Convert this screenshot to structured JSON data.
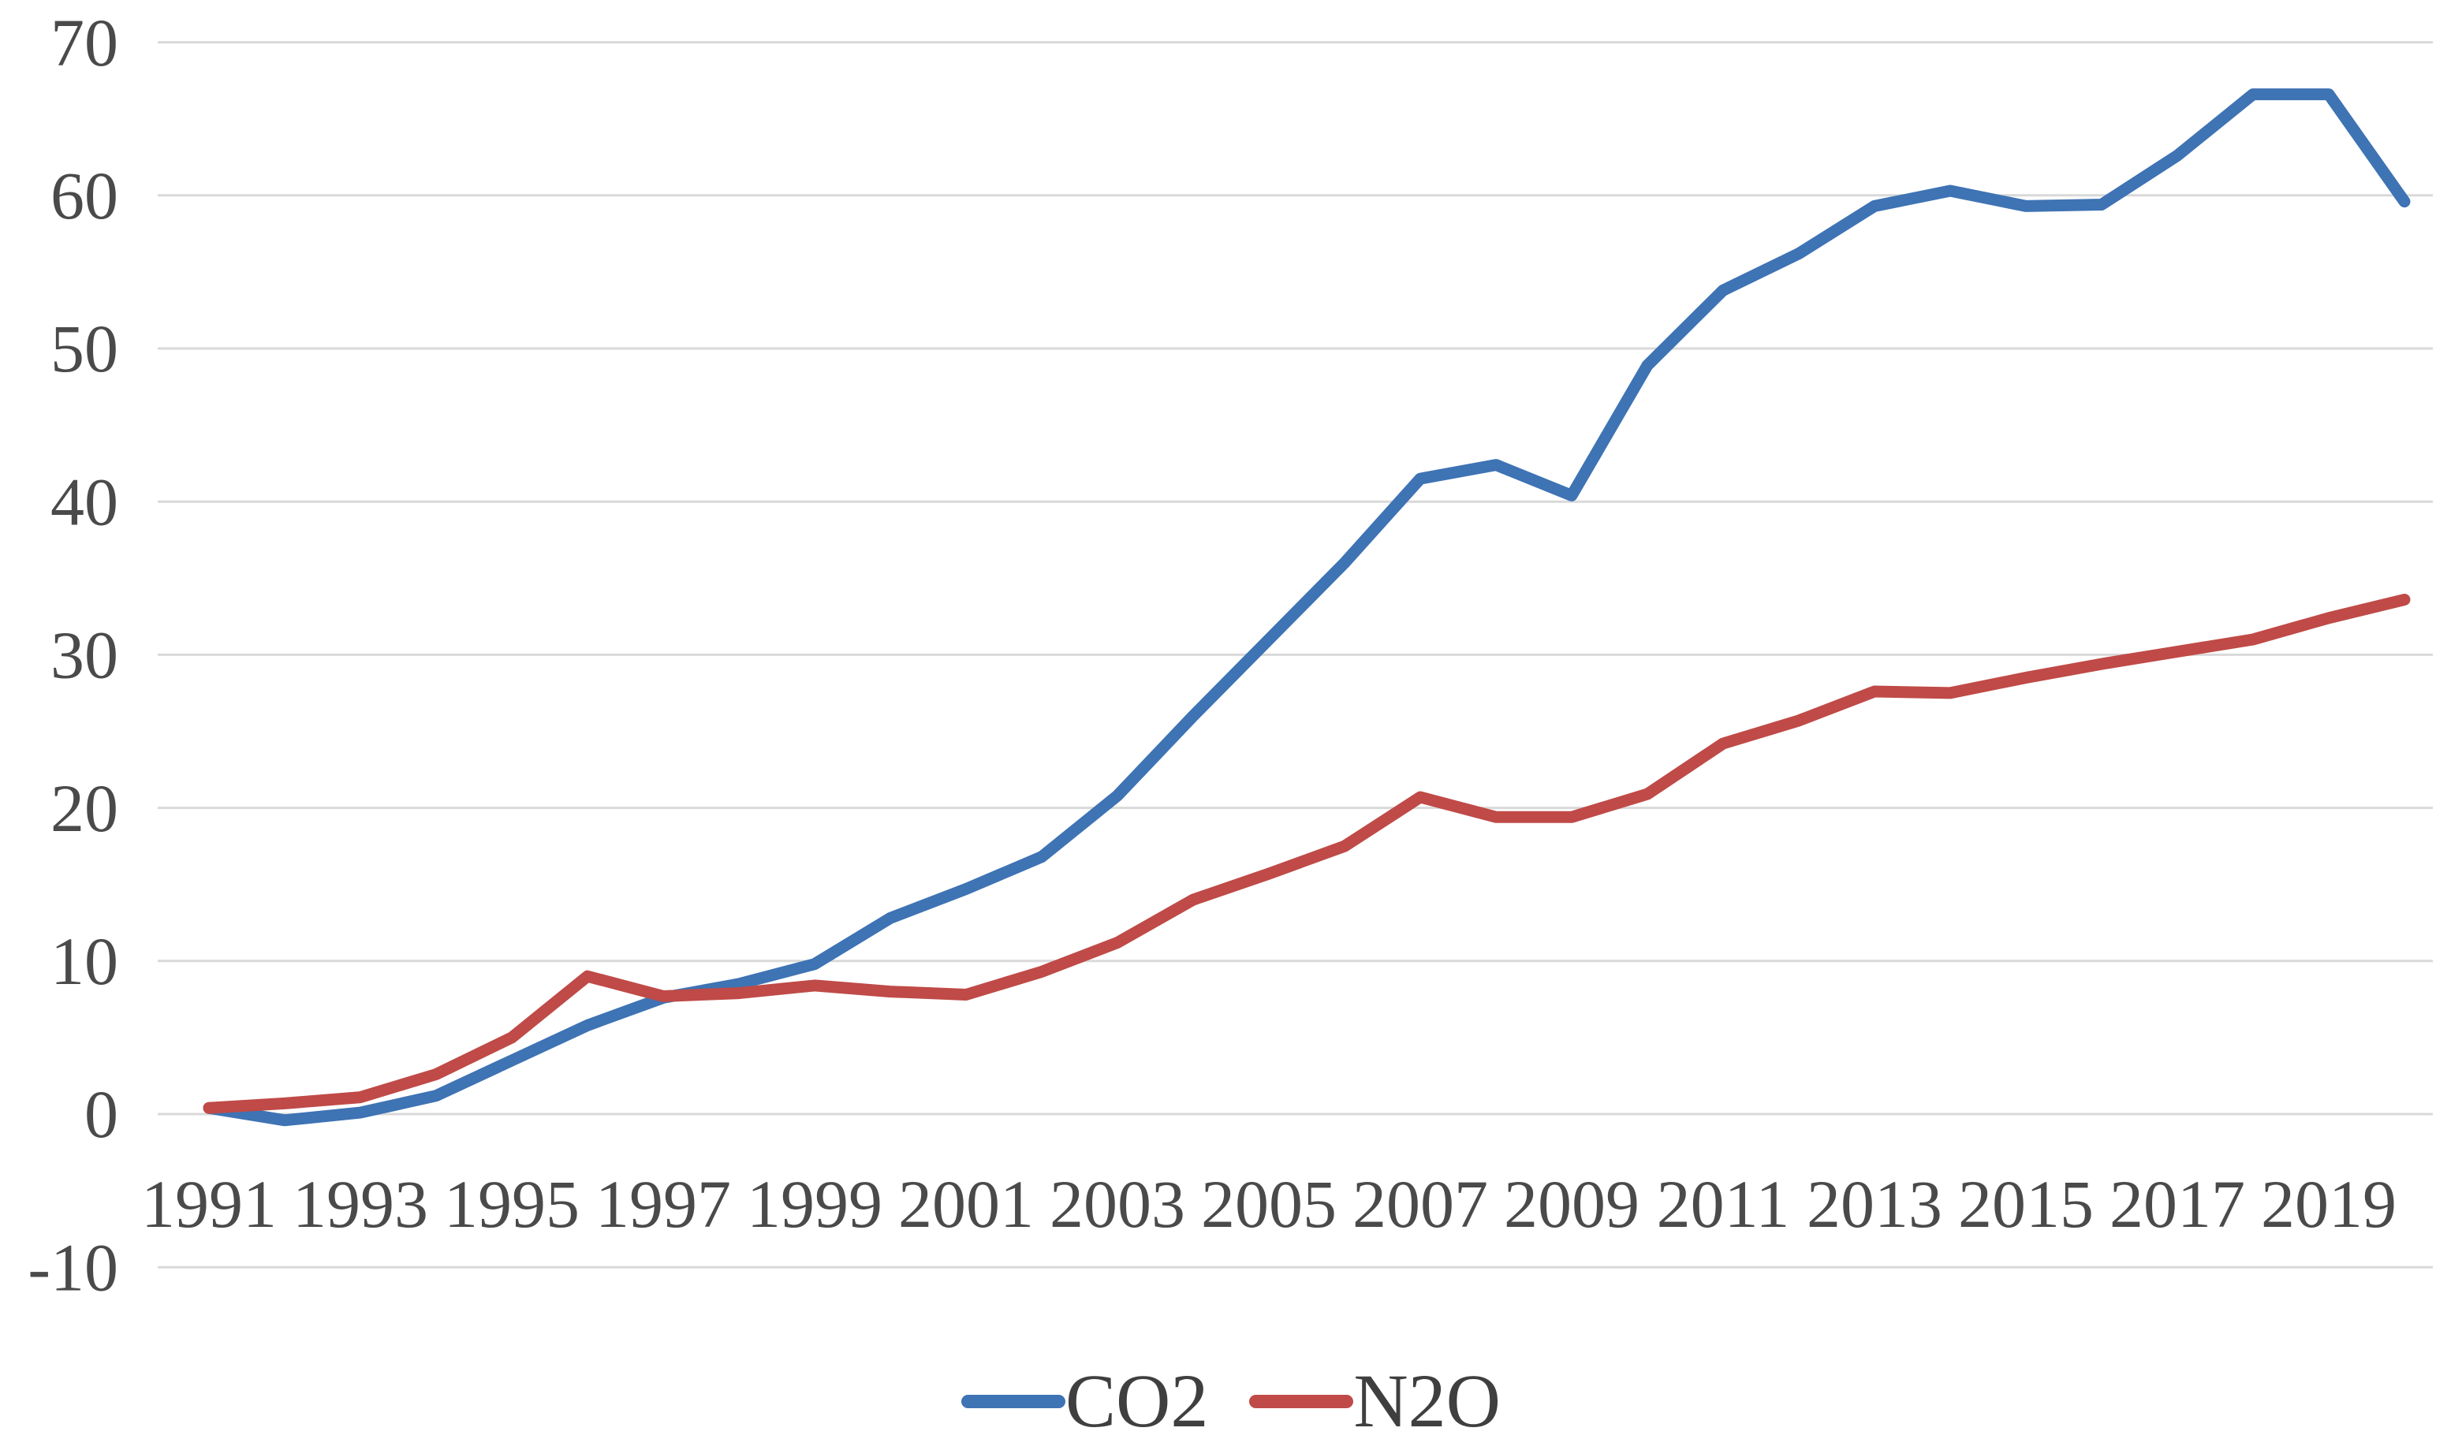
{
  "chart_data": {
    "type": "line",
    "title": "",
    "xlabel": "",
    "ylabel": "",
    "x": [
      1991,
      1992,
      1993,
      1994,
      1995,
      1996,
      1997,
      1998,
      1999,
      2000,
      2001,
      2002,
      2003,
      2004,
      2005,
      2006,
      2007,
      2008,
      2009,
      2010,
      2011,
      2012,
      2013,
      2014,
      2015,
      2016,
      2017,
      2018,
      2019,
      2020
    ],
    "series": [
      {
        "name": "CO2",
        "color": "#3e73b4",
        "values": [
          0.4,
          -0.4,
          0.1,
          1.2,
          3.5,
          5.8,
          7.6,
          8.5,
          9.8,
          12.8,
          14.7,
          16.8,
          20.8,
          26.0,
          31.0,
          36.0,
          41.5,
          42.4,
          40.4,
          48.9,
          53.8,
          56.2,
          59.3,
          60.3,
          59.3,
          59.4,
          62.6,
          66.6,
          66.6,
          59.6
        ]
      },
      {
        "name": "N2O",
        "color": "#bf4a47",
        "values": [
          0.4,
          0.7,
          1.1,
          2.6,
          5.0,
          9.0,
          7.7,
          7.9,
          8.4,
          8.0,
          7.8,
          9.3,
          11.2,
          14.0,
          15.7,
          17.5,
          20.7,
          19.4,
          19.4,
          20.9,
          24.2,
          25.7,
          27.6,
          27.5,
          28.5,
          29.4,
          30.2,
          31.0,
          32.4,
          33.6
        ]
      }
    ],
    "ylim": [
      -10,
      70
    ],
    "ytick_values": [
      70,
      60,
      50,
      40,
      30,
      20,
      10,
      0,
      -10
    ],
    "ytick_labels": [
      "70",
      "60",
      "50",
      "40",
      "30",
      "20",
      "10",
      "0",
      "-10"
    ],
    "xtick_years": [
      1991,
      1993,
      1995,
      1997,
      1999,
      2001,
      2003,
      2005,
      2007,
      2009,
      2011,
      2013,
      2015,
      2017,
      2019
    ],
    "xtick_labels": [
      "1991",
      "1993",
      "1995",
      "1997",
      "1999",
      "2001",
      "2003",
      "2005",
      "2007",
      "2009",
      "2011",
      "2013",
      "2015",
      "2017",
      "2019"
    ],
    "grid": true,
    "legend_position": "bottom",
    "colors": {
      "gridline": "#d9d9d9",
      "tick_text": "#4a4a4a",
      "legend_text": "#3f3f3f",
      "background": "#ffffff"
    }
  }
}
